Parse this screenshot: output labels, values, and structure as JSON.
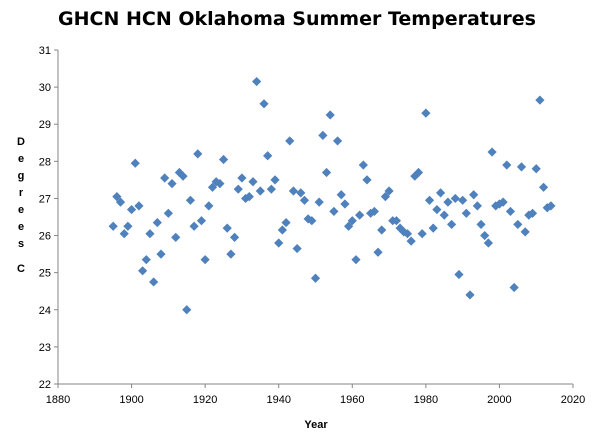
{
  "chart_data": {
    "type": "scatter",
    "title": "GHCN HCN Oklahoma Summer Temperatures",
    "xlabel": "Year",
    "ylabel": "Degrees C",
    "xlim": [
      1880,
      2020
    ],
    "ylim": [
      22,
      31
    ],
    "xticks": [
      1880,
      1900,
      1920,
      1940,
      1960,
      1980,
      2000,
      2020
    ],
    "yticks": [
      22,
      23,
      24,
      25,
      26,
      27,
      28,
      29,
      30,
      31
    ],
    "grid": false,
    "legend": "none",
    "marker": "diamond",
    "color": "#4f81bd",
    "series": [
      {
        "points": [
          [
            1895,
            26.25
          ],
          [
            1896,
            27.05
          ],
          [
            1897,
            26.9
          ],
          [
            1898,
            26.05
          ],
          [
            1899,
            26.25
          ],
          [
            1900,
            26.7
          ],
          [
            1901,
            27.95
          ],
          [
            1902,
            26.8
          ],
          [
            1903,
            25.05
          ],
          [
            1904,
            25.35
          ],
          [
            1905,
            26.05
          ],
          [
            1906,
            24.75
          ],
          [
            1907,
            26.35
          ],
          [
            1908,
            25.5
          ],
          [
            1909,
            27.55
          ],
          [
            1910,
            26.6
          ],
          [
            1911,
            27.4
          ],
          [
            1912,
            25.95
          ],
          [
            1913,
            27.7
          ],
          [
            1914,
            27.6
          ],
          [
            1915,
            24.0
          ],
          [
            1916,
            26.95
          ],
          [
            1917,
            26.25
          ],
          [
            1918,
            28.2
          ],
          [
            1919,
            26.4
          ],
          [
            1920,
            25.35
          ],
          [
            1921,
            26.8
          ],
          [
            1922,
            27.3
          ],
          [
            1923,
            27.45
          ],
          [
            1924,
            27.4
          ],
          [
            1925,
            28.05
          ],
          [
            1926,
            26.2
          ],
          [
            1927,
            25.5
          ],
          [
            1928,
            25.95
          ],
          [
            1929,
            27.25
          ],
          [
            1930,
            27.55
          ],
          [
            1931,
            27.0
          ],
          [
            1932,
            27.05
          ],
          [
            1933,
            27.45
          ],
          [
            1934,
            30.15
          ],
          [
            1935,
            27.2
          ],
          [
            1936,
            29.55
          ],
          [
            1937,
            28.15
          ],
          [
            1938,
            27.25
          ],
          [
            1939,
            27.5
          ],
          [
            1940,
            25.8
          ],
          [
            1941,
            26.15
          ],
          [
            1942,
            26.35
          ],
          [
            1943,
            28.55
          ],
          [
            1944,
            27.2
          ],
          [
            1945,
            25.65
          ],
          [
            1946,
            27.15
          ],
          [
            1947,
            26.95
          ],
          [
            1948,
            26.45
          ],
          [
            1949,
            26.4
          ],
          [
            1950,
            24.85
          ],
          [
            1951,
            26.9
          ],
          [
            1952,
            28.7
          ],
          [
            1953,
            27.7
          ],
          [
            1954,
            29.25
          ],
          [
            1955,
            26.65
          ],
          [
            1956,
            28.55
          ],
          [
            1957,
            27.1
          ],
          [
            1958,
            26.85
          ],
          [
            1959,
            26.25
          ],
          [
            1960,
            26.4
          ],
          [
            1961,
            25.35
          ],
          [
            1962,
            26.55
          ],
          [
            1963,
            27.9
          ],
          [
            1964,
            27.5
          ],
          [
            1965,
            26.6
          ],
          [
            1966,
            26.65
          ],
          [
            1967,
            25.55
          ],
          [
            1968,
            26.15
          ],
          [
            1969,
            27.05
          ],
          [
            1970,
            27.2
          ],
          [
            1971,
            26.4
          ],
          [
            1972,
            26.4
          ],
          [
            1973,
            26.2
          ],
          [
            1974,
            26.1
          ],
          [
            1975,
            26.05
          ],
          [
            1976,
            25.85
          ],
          [
            1977,
            27.6
          ],
          [
            1978,
            27.7
          ],
          [
            1979,
            26.05
          ],
          [
            1980,
            29.3
          ],
          [
            1981,
            26.95
          ],
          [
            1982,
            26.2
          ],
          [
            1983,
            26.7
          ],
          [
            1984,
            27.15
          ],
          [
            1985,
            26.55
          ],
          [
            1986,
            26.9
          ],
          [
            1987,
            26.3
          ],
          [
            1988,
            27.0
          ],
          [
            1989,
            24.95
          ],
          [
            1990,
            26.95
          ],
          [
            1991,
            26.6
          ],
          [
            1992,
            24.4
          ],
          [
            1993,
            27.1
          ],
          [
            1994,
            26.8
          ],
          [
            1995,
            26.3
          ],
          [
            1996,
            26.0
          ],
          [
            1997,
            25.8
          ],
          [
            1998,
            28.25
          ],
          [
            1999,
            26.8
          ],
          [
            2000,
            26.85
          ],
          [
            2001,
            26.9
          ],
          [
            2002,
            27.9
          ],
          [
            2003,
            26.65
          ],
          [
            2004,
            24.6
          ],
          [
            2005,
            26.3
          ],
          [
            2006,
            27.85
          ],
          [
            2007,
            26.1
          ],
          [
            2008,
            26.55
          ],
          [
            2009,
            26.6
          ],
          [
            2010,
            27.8
          ],
          [
            2011,
            29.65
          ],
          [
            2012,
            27.3
          ],
          [
            2013,
            26.75
          ],
          [
            2014,
            26.8
          ]
        ]
      }
    ]
  }
}
